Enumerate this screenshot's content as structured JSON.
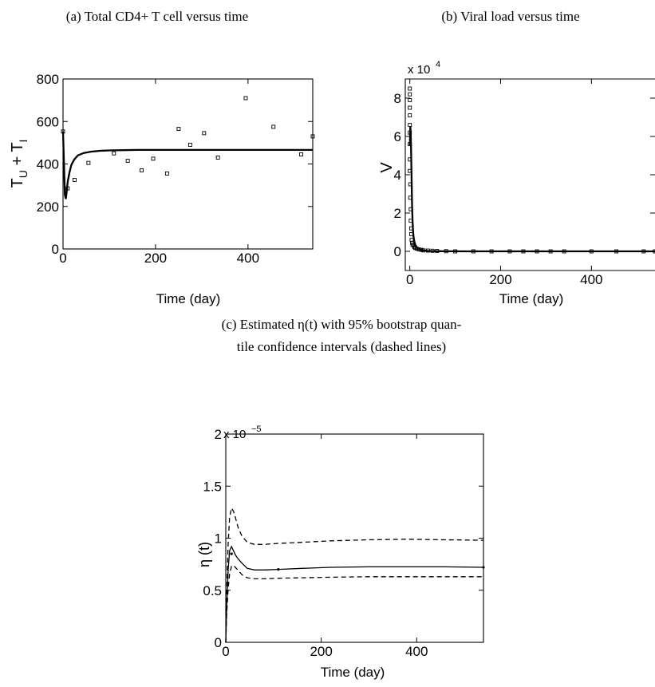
{
  "chart_data": [
    {
      "type": "scatter",
      "panel": "a",
      "title": "(a) Total CD4+ T cell versus time",
      "xlabel": "Time (day)",
      "ylabel": {
        "base": "T",
        "sub1": "U",
        "mid": " + T",
        "sub2": "I"
      },
      "xlim": [
        0,
        540
      ],
      "ylim": [
        0,
        800
      ],
      "xticks": [
        0,
        200,
        400
      ],
      "yticks": [
        0,
        200,
        400,
        600,
        800
      ],
      "series": [
        {
          "kind": "markers",
          "x": [
            0,
            10,
            25,
            55,
            110,
            140,
            170,
            195,
            225,
            250,
            275,
            305,
            335,
            395,
            455,
            515,
            540
          ],
          "y": [
            553,
            285,
            325,
            405,
            450,
            415,
            370,
            425,
            355,
            565,
            490,
            545,
            430,
            710,
            575,
            445,
            530
          ]
        },
        {
          "kind": "line",
          "style": "solid-thick",
          "x": [
            0,
            2,
            4,
            6,
            8,
            10,
            14,
            18,
            24,
            32,
            45,
            60,
            80,
            100,
            130,
            160,
            200,
            260,
            320,
            400,
            480,
            540
          ],
          "y": [
            553,
            400,
            255,
            235,
            270,
            315,
            360,
            395,
            420,
            440,
            452,
            458,
            462,
            464,
            465,
            466,
            466,
            466,
            466,
            466,
            466,
            466
          ]
        }
      ]
    },
    {
      "type": "scatter",
      "panel": "b",
      "title": "(b) Viral load versus time",
      "xlabel": "Time (day)",
      "ylabel": "V",
      "scale_base": "x 10",
      "scale_exp": "4",
      "xlim": [
        -10,
        540
      ],
      "ylim": [
        -1,
        9
      ],
      "xticks": [
        0,
        200,
        400
      ],
      "yticks": [
        0,
        2,
        4,
        6,
        8
      ],
      "series": [
        {
          "kind": "markers",
          "x": [
            0,
            0,
            0,
            0,
            0,
            0,
            0,
            0,
            0,
            0,
            1,
            1,
            2,
            2,
            3,
            3,
            4,
            5,
            6,
            8,
            10,
            12,
            15,
            20,
            25,
            30,
            40,
            50,
            60,
            80,
            100,
            140,
            180,
            220,
            250,
            280,
            310,
            340,
            400,
            455,
            515,
            540
          ],
          "y": [
            8.5,
            8.2,
            7.9,
            7.5,
            7.1,
            6.6,
            6.2,
            5.6,
            4.8,
            4.2,
            3.5,
            2.8,
            2.2,
            1.6,
            1.2,
            0.9,
            0.6,
            0.45,
            0.35,
            0.3,
            0.22,
            0.18,
            0.14,
            0.1,
            0.08,
            0.05,
            0.04,
            0.03,
            0.02,
            0.01,
            0.0,
            0.0,
            0.0,
            0.0,
            0.0,
            0.0,
            0.0,
            0.0,
            0.0,
            0.0,
            0.0,
            0.0
          ]
        },
        {
          "kind": "line",
          "style": "solid-thick",
          "x": [
            0,
            1,
            2,
            3,
            4,
            5,
            6,
            7,
            8,
            10,
            12,
            15,
            20,
            25,
            30,
            40,
            60,
            80,
            120,
            200,
            300,
            400,
            540
          ],
          "y": [
            5.5,
            6.5,
            6.2,
            5.0,
            3.6,
            2.4,
            1.6,
            1.1,
            0.8,
            0.5,
            0.35,
            0.22,
            0.12,
            0.07,
            0.05,
            0.02,
            0.01,
            0.005,
            0.0,
            0.0,
            0.0,
            0.0,
            0.0
          ]
        }
      ]
    },
    {
      "type": "line",
      "panel": "c",
      "title": "(c) Estimated η(t) with 95% bootstrap quan-",
      "title_line2": "tile confidence intervals (dashed lines)",
      "xlabel": "Time (day)",
      "ylabel": "η (t)",
      "scale_base": "x 10",
      "scale_exp": "−5",
      "xlim": [
        0,
        540
      ],
      "ylim": [
        0,
        2
      ],
      "xticks": [
        0,
        200,
        400
      ],
      "yticks": [
        0,
        0.5,
        1,
        1.5,
        2
      ],
      "ytick_labels": [
        "0",
        "0.5",
        "1",
        "1.5",
        "2"
      ],
      "series": [
        {
          "kind": "line",
          "style": "solid",
          "x": [
            0,
            2,
            5,
            8,
            12,
            16,
            20,
            26,
            34,
            45,
            60,
            80,
            110,
            160,
            220,
            300,
            380,
            460,
            540
          ],
          "y": [
            0,
            0.35,
            0.7,
            0.88,
            0.92,
            0.88,
            0.84,
            0.8,
            0.76,
            0.71,
            0.695,
            0.695,
            0.7,
            0.71,
            0.72,
            0.725,
            0.725,
            0.725,
            0.72
          ]
        },
        {
          "kind": "line",
          "style": "dashed",
          "x": [
            0,
            2,
            5,
            8,
            12,
            16,
            20,
            26,
            34,
            45,
            60,
            80,
            110,
            160,
            220,
            300,
            380,
            460,
            540
          ],
          "y": [
            0,
            0.5,
            0.95,
            1.2,
            1.29,
            1.26,
            1.2,
            1.1,
            1.02,
            0.96,
            0.94,
            0.94,
            0.95,
            0.96,
            0.975,
            0.985,
            0.99,
            0.985,
            0.98
          ]
        },
        {
          "kind": "line",
          "style": "dashed",
          "x": [
            0,
            2,
            5,
            8,
            12,
            16,
            20,
            26,
            34,
            45,
            60,
            80,
            110,
            160,
            220,
            300,
            380,
            460,
            540
          ],
          "y": [
            0,
            0.28,
            0.52,
            0.66,
            0.73,
            0.74,
            0.72,
            0.69,
            0.65,
            0.62,
            0.61,
            0.61,
            0.615,
            0.62,
            0.625,
            0.63,
            0.63,
            0.63,
            0.63
          ]
        },
        {
          "kind": "markers",
          "style": "dots",
          "x": [
            12,
            110,
            540
          ],
          "y": [
            0.85,
            0.7,
            0.72
          ]
        }
      ]
    }
  ]
}
